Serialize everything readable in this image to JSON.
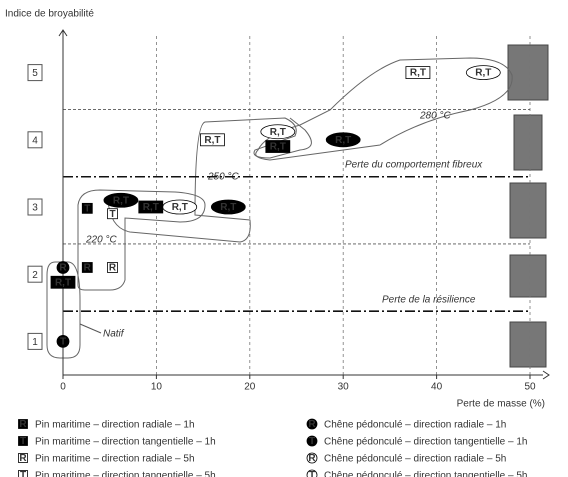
{
  "chart_data": {
    "type": "scatter",
    "y_label": "Indice de broyabilité",
    "x_label": "Perte de masse (%)",
    "xlim": [
      0,
      50
    ],
    "xticks": [
      0,
      10,
      20,
      30,
      40,
      50
    ],
    "ylim": [
      0.5,
      5.5
    ],
    "yticks": [
      1,
      2,
      3,
      4,
      5
    ],
    "hlines": [
      {
        "y": 1.45,
        "style": "dash-dot"
      },
      {
        "y": 2.45,
        "style": "dashed"
      },
      {
        "y": 3.45,
        "style": "dash-dot"
      },
      {
        "y": 4.45,
        "style": "dashed"
      }
    ],
    "annotations": [
      "280 °C",
      "250 °C",
      "220 °C",
      "Natif",
      "Perte du comportement fibreux",
      "Perte de la résilience"
    ],
    "points": [
      {
        "x": 0,
        "y": 1,
        "label": "T",
        "marker": "filled-circle"
      },
      {
        "x": 0,
        "y": 2.1,
        "label": "R",
        "marker": "filled-circle"
      },
      {
        "x": 0,
        "y": 1.88,
        "label": "R,T",
        "marker": "filled-square"
      },
      {
        "x": 2.6,
        "y": 2.1,
        "label": "R",
        "marker": "filled-square"
      },
      {
        "x": 5.3,
        "y": 2.1,
        "label": "R",
        "marker": "open-square"
      },
      {
        "x": 2.6,
        "y": 2.98,
        "label": "T",
        "marker": "filled-square"
      },
      {
        "x": 5.3,
        "y": 2.9,
        "label": "T",
        "marker": "open-square"
      },
      {
        "x": 6.2,
        "y": 3.1,
        "label": "R,T",
        "marker": "filled-circle"
      },
      {
        "x": 9.4,
        "y": 3.0,
        "label": "R,T",
        "marker": "filled-square"
      },
      {
        "x": 12.5,
        "y": 3.0,
        "label": "R,T",
        "marker": "open-circle"
      },
      {
        "x": 17.7,
        "y": 3.0,
        "label": "R,T",
        "marker": "filled-circle"
      },
      {
        "x": 16,
        "y": 4.0,
        "label": "R,T",
        "marker": "open-square"
      },
      {
        "x": 23,
        "y": 4.12,
        "label": "R,T",
        "marker": "open-circle"
      },
      {
        "x": 23,
        "y": 3.9,
        "label": "R,T",
        "marker": "filled-square"
      },
      {
        "x": 30,
        "y": 4.0,
        "label": "R,T",
        "marker": "filled-circle"
      },
      {
        "x": 38,
        "y": 5.0,
        "label": "R,T",
        "marker": "open-square"
      },
      {
        "x": 45,
        "y": 5.0,
        "label": "R,T",
        "marker": "open-circle"
      }
    ],
    "legend": [
      {
        "symbol": "R",
        "marker": "filled-square",
        "label": "Pin maritime – direction radiale – 1h"
      },
      {
        "symbol": "T",
        "marker": "filled-square",
        "label": "Pin maritime – direction tangentielle – 1h"
      },
      {
        "symbol": "R",
        "marker": "open-square",
        "label": "Pin maritime – direction radiale – 5h"
      },
      {
        "symbol": "T",
        "marker": "open-square",
        "label": "Pin maritime – direction tangentielle – 5h"
      },
      {
        "symbol": "R",
        "marker": "filled-circle",
        "label": "Chêne pédonculé – direction radiale – 1h"
      },
      {
        "symbol": "T",
        "marker": "filled-circle",
        "label": "Chêne pédonculé – direction tangentielle – 1h"
      },
      {
        "symbol": "R",
        "marker": "open-circle",
        "label": "Chêne pédonculé – direction radiale – 5h"
      },
      {
        "symbol": "T",
        "marker": "open-circle",
        "label": "Chêne pédonculé – direction tangentielle – 5h"
      }
    ]
  }
}
